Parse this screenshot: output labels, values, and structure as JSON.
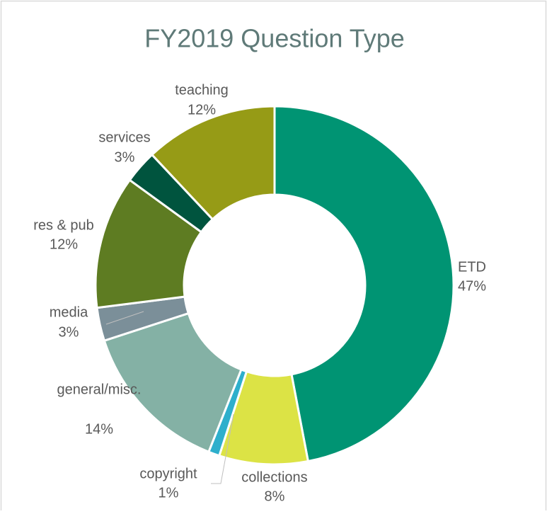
{
  "chart_data": {
    "type": "donut",
    "title": "FY2019 Question Type",
    "categories": [
      "ETD",
      "collections",
      "copyright",
      "general/misc.",
      "media",
      "res & pub",
      "services",
      "teaching"
    ],
    "values": [
      47,
      8,
      1,
      14,
      3,
      12,
      3,
      12
    ],
    "value_labels": [
      "47%",
      "8%",
      "1%",
      "14%",
      "3%",
      "12%",
      "3%",
      "12%"
    ],
    "colors": [
      "#009473",
      "#dce345",
      "#2eafcc",
      "#84b1a5",
      "#7b8f99",
      "#5e7c22",
      "#00543e",
      "#969b16"
    ]
  }
}
